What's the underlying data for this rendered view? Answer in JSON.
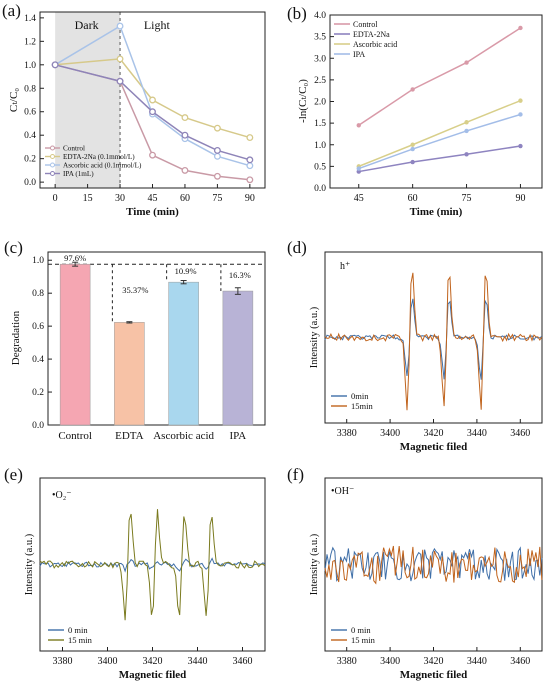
{
  "chart_data": [
    {
      "panel": "(a)",
      "type": "line",
      "xlabel": "Time (min)",
      "ylabel": "Ct/C0",
      "x": [
        0,
        30,
        45,
        60,
        75,
        90
      ],
      "xticks": [
        "0",
        "15",
        "30",
        "45",
        "60",
        "75",
        "90"
      ],
      "yticks": [
        "0.0",
        "0.2",
        "0.4",
        "0.6",
        "0.8",
        "1.0",
        "1.2",
        "1.4"
      ],
      "xlim": [
        -7,
        97
      ],
      "ylim": [
        -0.05,
        1.45
      ],
      "region_labels": [
        "Dark",
        "Light"
      ],
      "dark_region": [
        0,
        30
      ],
      "series": [
        {
          "name": "Control",
          "color": "#c99aa6",
          "values": [
            1.0,
            0.86,
            0.23,
            0.1,
            0.05,
            0.02
          ]
        },
        {
          "name": "EDTA-2Na (0.1mmol/L)",
          "color": "#d6c98a",
          "values": [
            1.0,
            1.05,
            0.7,
            0.55,
            0.46,
            0.38
          ]
        },
        {
          "name": "Ascorbic acid (0.1mmol/L)",
          "color": "#a9c3e8",
          "values": [
            1.0,
            1.33,
            0.58,
            0.37,
            0.22,
            0.14
          ]
        },
        {
          "name": "IPA (1mL)",
          "color": "#8e84b8",
          "values": [
            1.0,
            0.86,
            0.6,
            0.4,
            0.27,
            0.19
          ]
        }
      ]
    },
    {
      "panel": "(b)",
      "type": "line",
      "xlabel": "Time (min)",
      "ylabel": "-ln(Ct/C0)",
      "x": [
        45,
        60,
        75,
        90
      ],
      "xticks": [
        "45",
        "60",
        "75",
        "90"
      ],
      "yticks": [
        "0.0",
        "0.5",
        "1.0",
        "1.5",
        "2.0",
        "2.5",
        "3.0",
        "3.5",
        "4.0"
      ],
      "xlim": [
        37,
        96
      ],
      "ylim": [
        0,
        4
      ],
      "series": [
        {
          "name": "Control",
          "color": "#d99aa8",
          "values": [
            1.45,
            2.28,
            2.9,
            3.7
          ]
        },
        {
          "name": "EDTA-2Na",
          "color": "#8e84c0",
          "values": [
            0.38,
            0.6,
            0.78,
            0.97
          ]
        },
        {
          "name": "Ascorbic acid",
          "color": "#d8cf8a",
          "values": [
            0.5,
            1.0,
            1.52,
            2.02
          ]
        },
        {
          "name": "IPA",
          "color": "#a3bde8",
          "values": [
            0.45,
            0.9,
            1.32,
            1.7
          ]
        }
      ]
    },
    {
      "panel": "(c)",
      "type": "bar",
      "ylabel": "Degradation",
      "categories": [
        "Control",
        "EDTA",
        "Ascorbic acid",
        "IPA"
      ],
      "values": [
        0.976,
        0.623,
        0.867,
        0.813
      ],
      "errors": [
        0.012,
        0.004,
        0.01,
        0.02
      ],
      "colors": [
        "#f5a6b2",
        "#f7c2a6",
        "#a9d7ee",
        "#b8b3d6"
      ],
      "labels": [
        "97.6%",
        "35.37%",
        "10.9%",
        "16.3%"
      ],
      "yticks": [
        "0.0",
        "0.2",
        "0.4",
        "0.6",
        "0.8",
        "1.0"
      ],
      "ylim": [
        0,
        1.05
      ]
    },
    {
      "panel": "(d)",
      "type": "line",
      "species": "h⁺",
      "xlabel": "Magnetic filed",
      "ylabel": "Intensity (a.u.)",
      "xticks": [
        "3380",
        "3400",
        "3420",
        "3440",
        "3460"
      ],
      "xlim": [
        3370,
        3470
      ],
      "peak_centers": [
        3409,
        3426,
        3443
      ],
      "series": [
        {
          "name": "0min",
          "color": "#3f6fa8"
        },
        {
          "name": "15min",
          "color": "#c0631c"
        }
      ]
    },
    {
      "panel": "(e)",
      "type": "line",
      "species": "•O₂⁻",
      "xlabel": "Magnetic filed",
      "ylabel": "Intensity (a.u.)",
      "xticks": [
        "3380",
        "3400",
        "3420",
        "3440",
        "3460"
      ],
      "xlim": [
        3370,
        3470
      ],
      "peak_centers": [
        3409,
        3421,
        3433,
        3445
      ],
      "series": [
        {
          "name": "0 min",
          "color": "#3f6fa8"
        },
        {
          "name": "15 min",
          "color": "#7a7a1e"
        }
      ]
    },
    {
      "panel": "(f)",
      "type": "line",
      "species": "•OH⁻",
      "xlabel": "Magnetic filed",
      "ylabel": "Intensity (a.u.)",
      "xticks": [
        "3380",
        "3400",
        "3420",
        "3440",
        "3460"
      ],
      "xlim": [
        3370,
        3470
      ],
      "series": [
        {
          "name": "0 min",
          "color": "#3f6fa8"
        },
        {
          "name": "15 min",
          "color": "#c0631c"
        }
      ]
    }
  ]
}
